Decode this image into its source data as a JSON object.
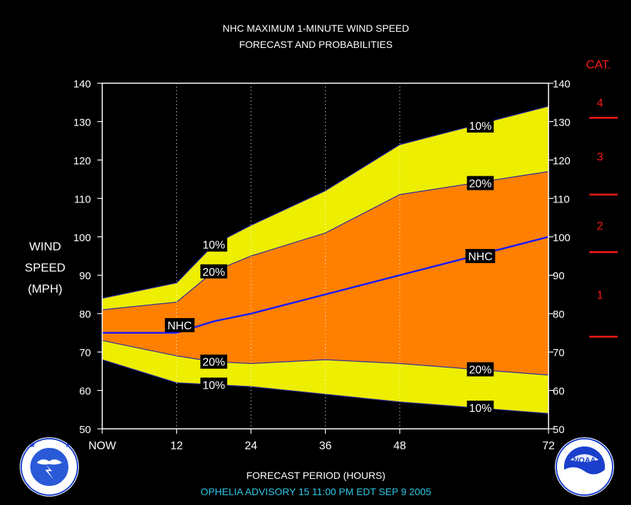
{
  "title_line1": "NHC MAXIMUM 1-MINUTE WIND SPEED",
  "title_line2": "FORECAST AND PROBABILITIES",
  "ylabel_lines": [
    "WIND",
    "SPEED",
    "(MPH)"
  ],
  "xlabel": "FORECAST PERIOD (HOURS)",
  "advisory": "OPHELIA   ADVISORY  15 11:00 PM EDT SEP  9  2005",
  "category_header": "CAT.",
  "logos": {
    "nws": "National Weather Service",
    "noaa": "NOAA"
  },
  "colors": {
    "outer_band": "#eeee00",
    "inner_band": "#ff8000",
    "nhc_line": "#1a1aff",
    "category": "#ff1a1a",
    "advisory": "#2ec8e8"
  },
  "chart_data": {
    "type": "area",
    "x_unit": "forecast hours",
    "x": [
      0,
      12,
      18,
      24,
      36,
      48,
      60,
      72
    ],
    "xlim": [
      0,
      72
    ],
    "ylim": [
      50,
      140
    ],
    "x_ticks": [
      {
        "x": 0,
        "label": "NOW"
      },
      {
        "x": 12,
        "label": "12"
      },
      {
        "x": 24,
        "label": "24"
      },
      {
        "x": 36,
        "label": "36"
      },
      {
        "x": 48,
        "label": "48"
      },
      {
        "x": 72,
        "label": "72"
      }
    ],
    "y_ticks": [
      "50",
      "60",
      "70",
      "80",
      "90",
      "100",
      "110",
      "120",
      "130",
      "140"
    ],
    "vertical_gridlines_at": [
      12,
      24,
      36,
      48
    ],
    "series": [
      {
        "name": "10%",
        "upper": [
          84,
          88,
          98,
          103,
          112,
          124,
          129,
          134
        ],
        "lower": [
          68,
          62,
          61.5,
          61,
          59,
          57,
          55.5,
          54
        ]
      },
      {
        "name": "20%",
        "upper": [
          81,
          83,
          91,
          95,
          101,
          111,
          114,
          117
        ],
        "lower": [
          73,
          69,
          67.5,
          67,
          68,
          67,
          65.5,
          64
        ]
      },
      {
        "name": "NHC",
        "values": [
          75,
          75,
          78,
          80,
          85,
          90,
          95,
          100
        ]
      }
    ],
    "labels": [
      {
        "text": "10%",
        "x": 18,
        "y": 98
      },
      {
        "text": "20%",
        "x": 18,
        "y": 91
      },
      {
        "text": "NHC",
        "x": 12.5,
        "y": 77
      },
      {
        "text": "20%",
        "x": 18,
        "y": 67.5
      },
      {
        "text": "10%",
        "x": 18,
        "y": 61.5
      },
      {
        "text": "10%",
        "x": 61,
        "y": 129
      },
      {
        "text": "20%",
        "x": 61,
        "y": 114
      },
      {
        "text": "NHC",
        "x": 61,
        "y": 95
      },
      {
        "text": "20%",
        "x": 61,
        "y": 65.5
      },
      {
        "text": "10%",
        "x": 61,
        "y": 55.5
      }
    ],
    "categories": [
      {
        "label": "4",
        "y": 135
      },
      {
        "label": "3",
        "y": 121
      },
      {
        "label": "2",
        "y": 103
      },
      {
        "label": "1",
        "y": 85
      }
    ],
    "category_thresholds": [
      131,
      111,
      96,
      74
    ]
  }
}
